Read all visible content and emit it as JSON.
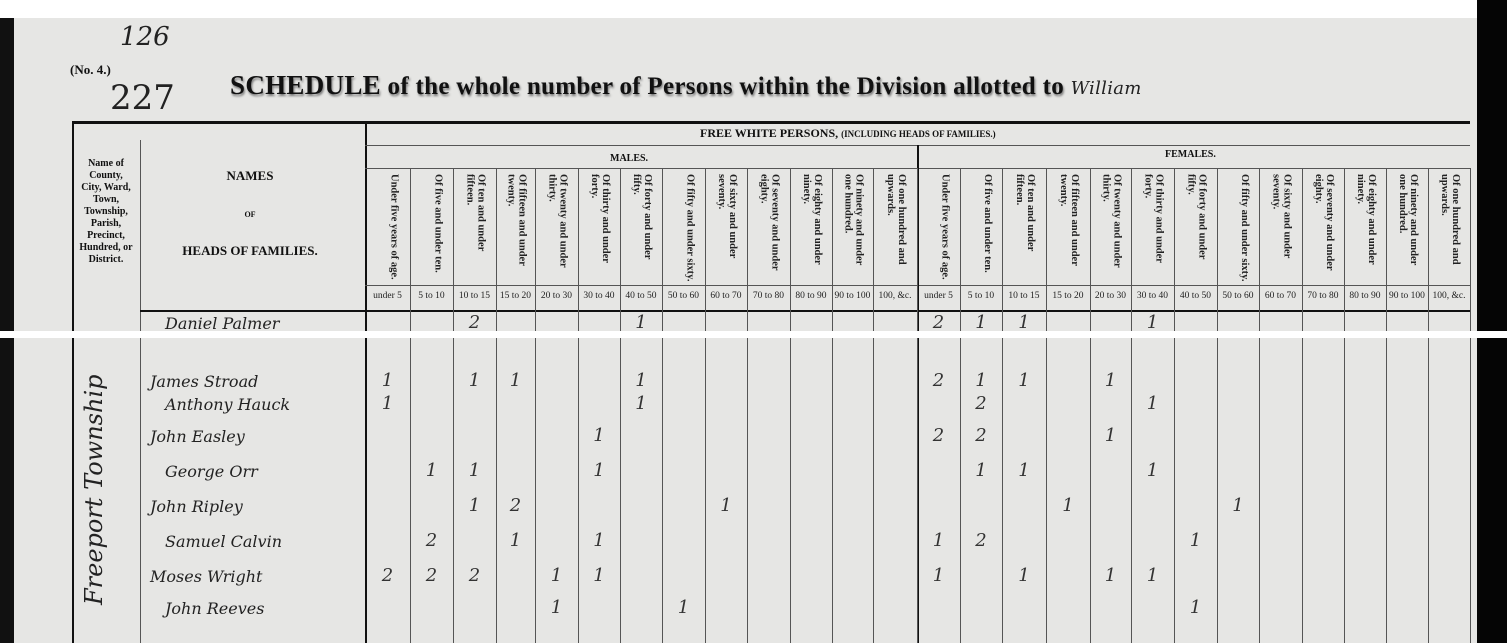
{
  "page_marks": {
    "folio": "126",
    "schedule_no": "(No. 4.)",
    "page_number": "227"
  },
  "title": {
    "lead": "SCHEDULE",
    "text": "of the whole number of Persons within the Division allotted to",
    "handwritten": "William"
  },
  "header": {
    "place_col": "Name of County, City, Ward, Town, Township, Parish, Precinct, Hundred, or District.",
    "names_col": {
      "line1": "NAMES",
      "line2": "OF",
      "line3": "HEADS OF FAMILIES."
    },
    "group": "FREE WHITE PERSONS,",
    "group_note": "(INCLUDING HEADS OF FAMILIES.)",
    "males": "MALES.",
    "females": "FEMALES.",
    "age_descriptions": [
      "Under five years of age.",
      "Of five and under ten.",
      "Of ten and under fifteen.",
      "Of fifteen and under twenty.",
      "Of twenty and under thirty.",
      "Of thirty and under forty.",
      "Of forty and under fifty.",
      "Of fifty and under sixty.",
      "Of sixty and under seventy.",
      "Of seventy and under eighty.",
      "Of eighty and under ninety.",
      "Of ninety and under one hundred.",
      "Of one hundred and upwards."
    ],
    "age_ranges": [
      "under 5",
      "5 to 10",
      "10 to 15",
      "15 to 20",
      "20 to 30",
      "30 to 40",
      "40 to 50",
      "50 to 60",
      "60 to 70",
      "70 to 80",
      "80 to 90",
      "90 to 100",
      "100, &c."
    ]
  },
  "township": "Freeport Township",
  "highlight": {
    "row": "Moses Wright",
    "color": "#e8141b"
  },
  "rows": [
    {
      "name": "Daniel Palmer",
      "male": [
        "",
        "",
        "2",
        "",
        "",
        "",
        "1",
        "",
        "",
        "",
        "",
        "",
        ""
      ],
      "female": [
        "2",
        "1",
        "1",
        "",
        "",
        "1",
        "",
        "",
        "",
        "",
        "",
        "",
        ""
      ]
    },
    {
      "name": "James Stroad",
      "male": [
        "1",
        "",
        "1",
        "1",
        "",
        "",
        "1",
        "",
        "",
        "",
        "",
        "",
        ""
      ],
      "female": [
        "2",
        "1",
        "1",
        "",
        "1",
        "",
        "",
        "",
        "",
        "",
        "",
        "",
        ""
      ]
    },
    {
      "name": "Anthony Hauck",
      "male": [
        "1",
        "",
        "",
        "",
        "",
        "",
        "1",
        "",
        "",
        "",
        "",
        "",
        ""
      ],
      "female": [
        "",
        "2",
        "",
        "",
        "",
        "1",
        "",
        "",
        "",
        "",
        "",
        "",
        ""
      ]
    },
    {
      "name": "John Easley",
      "male": [
        "",
        "",
        "",
        "",
        "",
        "1",
        "",
        "",
        "",
        "",
        "",
        "",
        ""
      ],
      "female": [
        "2",
        "2",
        "",
        "",
        "1",
        "",
        "",
        "",
        "",
        "",
        "",
        "",
        ""
      ]
    },
    {
      "name": "George Orr",
      "male": [
        "",
        "1",
        "1",
        "",
        "",
        "1",
        "",
        "",
        "",
        "",
        "",
        "",
        ""
      ],
      "female": [
        "",
        "1",
        "1",
        "",
        "",
        "1",
        "",
        "",
        "",
        "",
        "",
        "",
        ""
      ]
    },
    {
      "name": "John Ripley",
      "male": [
        "",
        "",
        "1",
        "2",
        "",
        "",
        "",
        "",
        "1",
        "",
        "",
        "",
        ""
      ],
      "female": [
        "",
        "",
        "",
        "1",
        "",
        "",
        "",
        "1",
        "",
        "",
        "",
        "",
        ""
      ]
    },
    {
      "name": "Samuel Calvin",
      "male": [
        "",
        "2",
        "",
        "1",
        "",
        "1",
        "",
        "",
        "",
        "",
        "",
        "",
        ""
      ],
      "female": [
        "1",
        "2",
        "",
        "",
        "",
        "",
        "1",
        "",
        "",
        "",
        "",
        "",
        ""
      ]
    },
    {
      "name": "Moses Wright",
      "male": [
        "2",
        "2",
        "2",
        "",
        "1",
        "1",
        "",
        "",
        "",
        "",
        "",
        "",
        ""
      ],
      "female": [
        "1",
        "",
        "1",
        "",
        "1",
        "1",
        "",
        "",
        "",
        "",
        "",
        "",
        ""
      ]
    },
    {
      "name": "John Reeves",
      "male": [
        "",
        "",
        "",
        "",
        "1",
        "",
        "",
        "1",
        "",
        "",
        "",
        "",
        ""
      ],
      "female": [
        "",
        "",
        "",
        "",
        "",
        "",
        "1",
        "",
        "",
        "",
        "",
        "",
        ""
      ]
    }
  ]
}
